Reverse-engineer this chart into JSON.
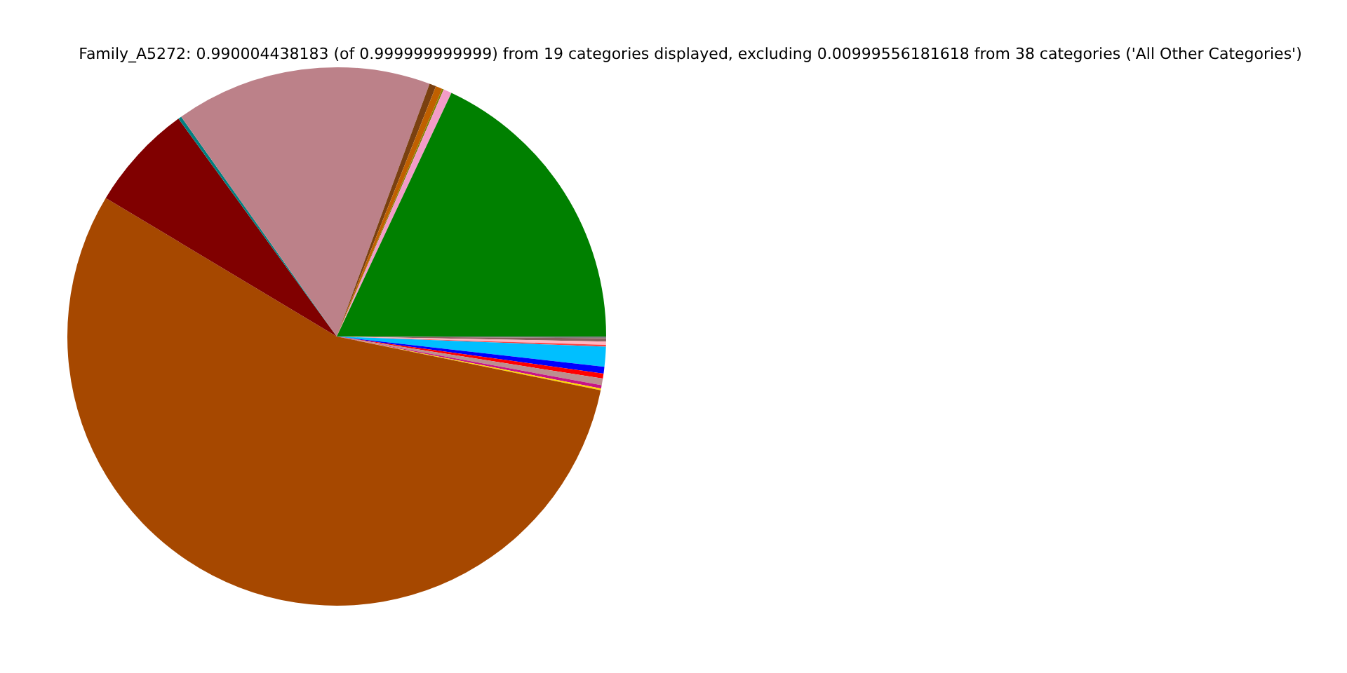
{
  "chart_data": {
    "type": "pie",
    "title": "Family_A5272: 0.990004438183 (of 0.999999999999) from 19 categories displayed, excluding 0.00999556181618 from 38 categories ('All Other Categories')",
    "categories": [
      null,
      null,
      null,
      null,
      null,
      null,
      null,
      null,
      null,
      null,
      null,
      null,
      null,
      null,
      null,
      null,
      null,
      null,
      null
    ],
    "values": [
      0.1,
      0.2,
      0.2,
      0.1,
      1.2,
      0.4,
      0.3,
      0.4,
      0.2,
      0.1,
      55.4,
      6.4,
      0.2,
      15.4,
      0.4,
      0.4,
      0.1,
      0.5,
      18.0
    ],
    "colors": [
      "#808080",
      "#8b6060",
      "#ffb6c1",
      "#ff4040",
      "#00bfff",
      "#0000ff",
      "#ff0000",
      "#bc8f8f",
      "#c71585",
      "#ffd700",
      "#a64800",
      "#800000",
      "#008080",
      "#bc8189",
      "#7a4010",
      "#c06000",
      "#808000",
      "#f29cc8",
      "#008000"
    ],
    "legend": false
  }
}
